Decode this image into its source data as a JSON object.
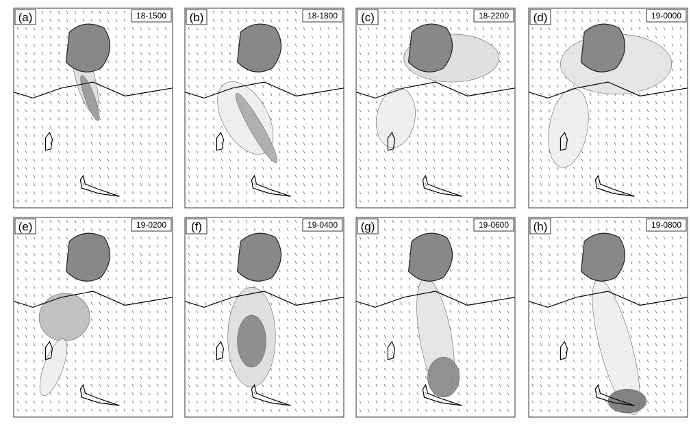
{
  "panels": [
    {
      "label": "(a)",
      "time": "18-1500"
    },
    {
      "label": "(b)",
      "time": "18-1800"
    },
    {
      "label": "(c)",
      "time": "18-2200"
    },
    {
      "label": "(d)",
      "time": "19-0000"
    },
    {
      "label": "(e)",
      "time": "19-0200"
    },
    {
      "label": "(f)",
      "time": "19-0400"
    },
    {
      "label": "(g)",
      "time": "19-0600"
    },
    {
      "label": "(h)",
      "time": "19-0800"
    }
  ]
}
